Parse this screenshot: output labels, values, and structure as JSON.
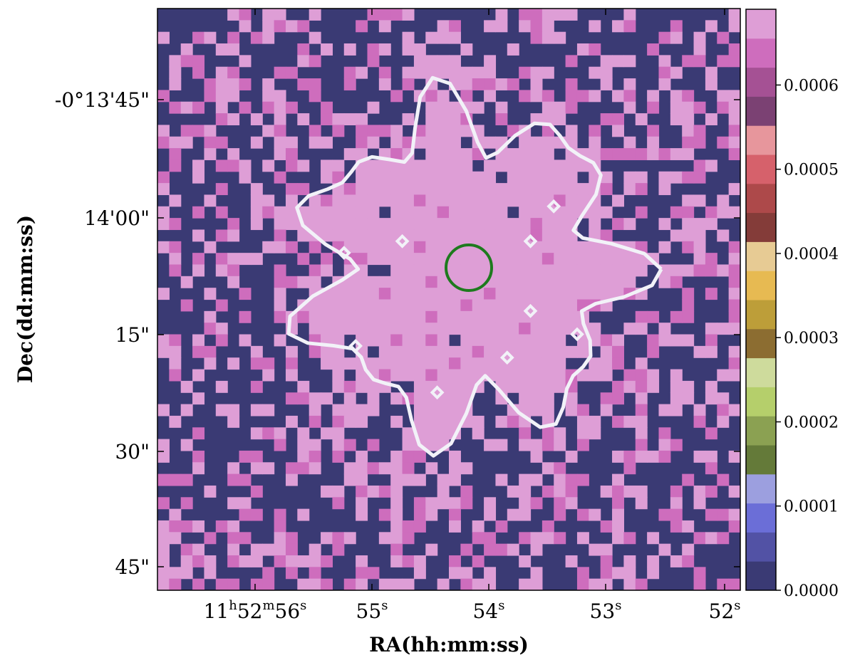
{
  "chart_data": {
    "type": "heatmap",
    "xlabel": "RA(hh:mm:ss)",
    "ylabel": "Dec(dd:mm:ss)",
    "x_ticks": [
      {
        "label": "11h52m56s",
        "main": "11",
        "sup": [
          "h",
          "m",
          "s"
        ],
        "parts": [
          "11",
          "52",
          "56"
        ]
      },
      {
        "label": "55s",
        "main": "55",
        "sup": [
          "s"
        ],
        "parts": [
          "55"
        ]
      },
      {
        "label": "54s",
        "main": "54",
        "sup": [
          "s"
        ],
        "parts": [
          "54"
        ]
      },
      {
        "label": "53s",
        "main": "53",
        "sup": [
          "s"
        ],
        "parts": [
          "53"
        ]
      },
      {
        "label": "52s",
        "main": "52",
        "sup": [
          "s"
        ],
        "parts": [
          "52"
        ]
      }
    ],
    "y_ticks": [
      "-0°13'45\"",
      "14'00\"",
      "15\"",
      "30\"",
      "45\""
    ],
    "colorbar": {
      "ticks": [
        "0.0000",
        "0.0001",
        "0.0002",
        "0.0003",
        "0.0004",
        "0.0005",
        "0.0006"
      ],
      "range": [
        0.0,
        0.00069
      ],
      "colors": [
        "#3a3a74",
        "#5252a5",
        "#6b6ed7",
        "#9c9fdf",
        "#647a39",
        "#8ba152",
        "#b5cf6b",
        "#cedb9c",
        "#8c6d31",
        "#bd9e39",
        "#e7ba52",
        "#e7cb94",
        "#843c39",
        "#ad494a",
        "#d6616b",
        "#e7969c",
        "#7b4173",
        "#a55194",
        "#ce6dbd",
        "#de9ed6"
      ]
    },
    "grid": false,
    "background_value_color": "#3a3a74",
    "pixel_colors": {
      "low": "#3a3a74",
      "mid": "#ce6dbd",
      "high": "#de9ed6"
    },
    "contour_color": "#f2f2f8",
    "marker_circle_color": "#1e7a1e"
  }
}
